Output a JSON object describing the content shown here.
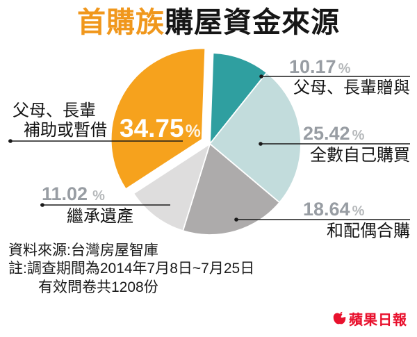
{
  "title": {
    "highlight": "首購族",
    "rest": "購屋資金來源"
  },
  "chart_data": {
    "type": "pie",
    "title": "首購族購屋資金來源",
    "unit": "%",
    "start_angle_deg": 2,
    "legend_position": "callouts",
    "slices": [
      {
        "label": "父母、長輩贈與",
        "value": 10.17,
        "color": "#2f9fa0",
        "exploded": false
      },
      {
        "label": "全數自己購買",
        "value": 25.42,
        "color": "#c2dcdc",
        "exploded": false
      },
      {
        "label": "和配偶合購",
        "value": 18.64,
        "color": "#adabab",
        "exploded": false
      },
      {
        "label": "繼承遺產",
        "value": 11.02,
        "color": "#dedddd",
        "exploded": false
      },
      {
        "label": "父母、長輩補助或暫借",
        "value": 34.75,
        "color": "#f6a21d",
        "exploded": true
      }
    ]
  },
  "callouts": {
    "gift": {
      "pct": "10.17",
      "unit": "%",
      "label": "父母、長輩贈與"
    },
    "self": {
      "pct": "25.42",
      "unit": "%",
      "label": "全數自己購買"
    },
    "spouse": {
      "pct": "18.64",
      "unit": "%",
      "label": "和配偶合購"
    },
    "inherit": {
      "pct": "11.02",
      "unit": "%",
      "label": "繼承遺產"
    },
    "parents": {
      "pct": "34.75",
      "unit": "%",
      "label_line1": "父母、長輩",
      "label_line2": "補助或暫借"
    }
  },
  "footer": {
    "source": "資料來源:台灣房屋智庫",
    "note_line1": "註:調查期間為2014年7月8日~7月25日",
    "note_line2": "有效問卷共1208份"
  },
  "logo": {
    "name": "蘋果日報"
  }
}
